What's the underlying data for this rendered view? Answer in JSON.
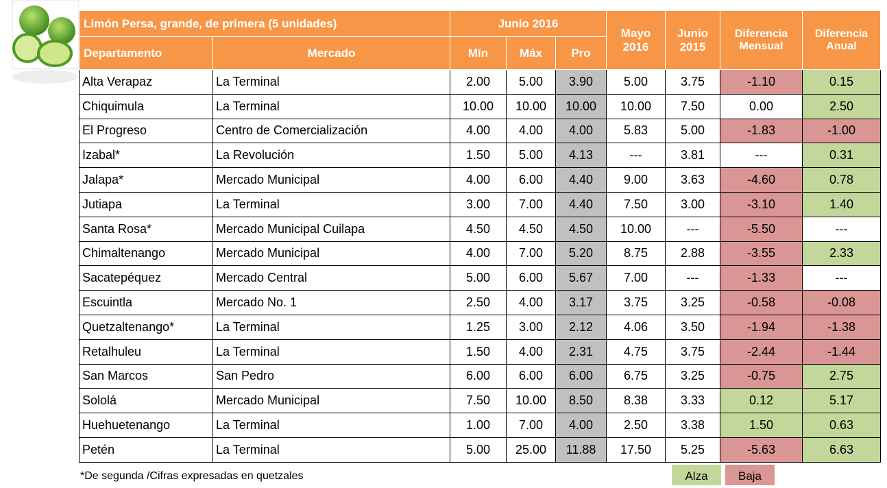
{
  "header": {
    "product": "Limón Persa, grande, de primera (5 unidades)",
    "junio_2016": "Junio 2016",
    "mayo_2016": "Mayo 2016",
    "junio_2015": "Junio 2015",
    "dif_mensual": "Diferencia Mensual",
    "dif_anual": "Diferencia Anual",
    "columns": [
      "Departamento",
      "Mercado",
      "Mín",
      "Máx",
      "Pro"
    ]
  },
  "table": {
    "rows": [
      [
        "Alta Verapaz",
        "La Terminal",
        "2.00",
        "5.00",
        "3.90",
        "5.00",
        "3.75",
        "-1.10",
        "0.15"
      ],
      [
        "Chiquimula",
        "La Terminal",
        "10.00",
        "10.00",
        "10.00",
        "10.00",
        "7.50",
        "0.00",
        "2.50"
      ],
      [
        "El Progreso",
        "Centro de Comercialización",
        "4.00",
        "4.00",
        "4.00",
        "5.83",
        "5.00",
        "-1.83",
        "-1.00"
      ],
      [
        "Izabal*",
        "La Revolución",
        "1.50",
        "5.00",
        "4.13",
        "---",
        "3.81",
        "---",
        "0.31"
      ],
      [
        "Jalapa*",
        "Mercado Municipal",
        "4.00",
        "6.00",
        "4.40",
        "9.00",
        "3.63",
        "-4.60",
        "0.78"
      ],
      [
        "Jutiapa",
        "La Terminal",
        "3.00",
        "7.00",
        "4.40",
        "7.50",
        "3.00",
        "-3.10",
        "1.40"
      ],
      [
        "Santa Rosa*",
        "Mercado Municipal Cuilapa",
        "4.50",
        "4.50",
        "4.50",
        "10.00",
        "---",
        "-5.50",
        "---"
      ],
      [
        "Chimaltenango",
        "Mercado Municipal",
        "4.00",
        "7.00",
        "5.20",
        "8.75",
        "2.88",
        "-3.55",
        "2.33"
      ],
      [
        "Sacatepéquez",
        "Mercado Central",
        "5.00",
        "6.00",
        "5.67",
        "7.00",
        "---",
        "-1.33",
        "---"
      ],
      [
        "Escuintla",
        "Mercado No. 1",
        "2.50",
        "4.00",
        "3.17",
        "3.75",
        "3.25",
        "-0.58",
        "-0.08"
      ],
      [
        "Quetzaltenango*",
        "La Terminal",
        "1.25",
        "3.00",
        "2.12",
        "4.06",
        "3.50",
        "-1.94",
        "-1.38"
      ],
      [
        "Retalhuleu",
        "La Terminal",
        "1.50",
        "4.00",
        "2.31",
        "4.75",
        "3.75",
        "-2.44",
        "-1.44"
      ],
      [
        "San Marcos",
        "San Pedro",
        "6.00",
        "6.00",
        "6.00",
        "6.75",
        "3.25",
        "-0.75",
        "2.75"
      ],
      [
        "Sololá",
        "Mercado Municipal",
        "7.50",
        "10.00",
        "8.50",
        "8.38",
        "3.33",
        "0.12",
        "5.17"
      ],
      [
        "Huehuetenango",
        "La Terminal",
        "1.00",
        "7.00",
        "4.00",
        "2.50",
        "3.38",
        "1.50",
        "0.63"
      ],
      [
        "Petén",
        "La Terminal",
        "5.00",
        "25.00",
        "11.88",
        "17.50",
        "5.25",
        "-5.63",
        "6.63"
      ]
    ]
  },
  "footnote": "*De segunda /Cifras expresadas en quetzales",
  "legend": [
    {
      "label": "Alza",
      "color": "#c4d79b"
    },
    {
      "label": "Baja",
      "color": "#da9694"
    }
  ]
}
